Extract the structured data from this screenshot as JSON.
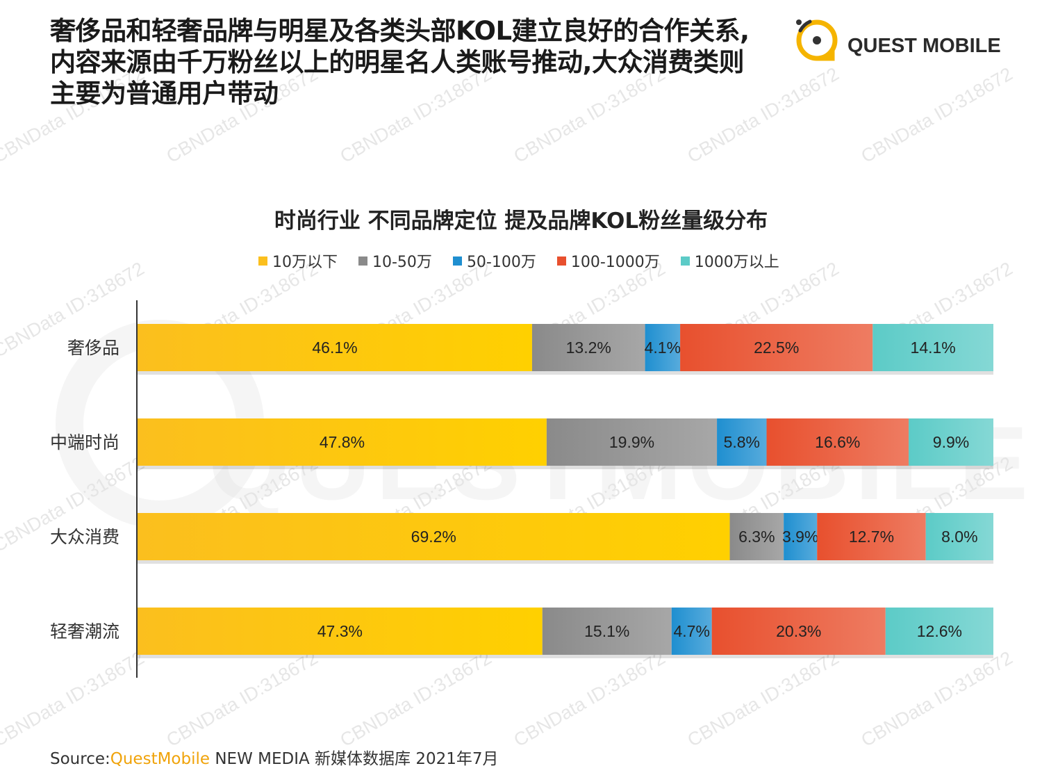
{
  "headline": {
    "line1": "奢侈品和轻奢品牌与明星及各类头部KOL建立良好的合作关系,",
    "line2": "内容来源由千万粉丝以上的明星名人类账号推动,大众消费类则",
    "line3": "主要为普通用户带动"
  },
  "logo": {
    "text": "QUEST MOBILE"
  },
  "watermark": {
    "text": "CBNData ID:318672",
    "big_text": "QUESTMOBILE"
  },
  "colors": {
    "yellow": "#fbbf1e",
    "gray": "#8a8a8a",
    "blue": "#1f8fd0",
    "red": "#e8502e",
    "teal": "#5ccbc7",
    "brand": "#f0a30a"
  },
  "chart_data": {
    "type": "bar",
    "orientation": "horizontal",
    "stacked": true,
    "title": "时尚行业 不同品牌定位 提及品牌KOL粉丝量级分布",
    "categories": [
      "奢侈品",
      "中端时尚",
      "大众消费",
      "轻奢潮流"
    ],
    "series": [
      {
        "name": "10万以下",
        "color": "#fbbf1e",
        "values": [
          46.1,
          47.8,
          69.2,
          47.3
        ],
        "labels": [
          "46.1%",
          "47.8%",
          "69.2%",
          "47.3%"
        ]
      },
      {
        "name": "10-50万",
        "color": "#8a8a8a",
        "values": [
          13.2,
          19.9,
          6.3,
          15.1
        ],
        "labels": [
          "13.2%",
          "19.9%",
          "6.3%",
          "15.1%"
        ]
      },
      {
        "name": "50-100万",
        "color": "#1f8fd0",
        "values": [
          4.1,
          5.8,
          3.9,
          4.7
        ],
        "labels": [
          "4.1%",
          "5.8%",
          "3.9%",
          "4.7%"
        ]
      },
      {
        "name": "100-1000万",
        "color": "#e8502e",
        "values": [
          22.5,
          16.6,
          12.7,
          20.3
        ],
        "labels": [
          "22.5%",
          "16.6%",
          "12.7%",
          "20.3%"
        ]
      },
      {
        "name": "1000万以上",
        "color": "#5ccbc7",
        "values": [
          14.1,
          9.9,
          8.0,
          12.6
        ],
        "labels": [
          "14.1%",
          "9.9%",
          "8.0%",
          "12.6%"
        ]
      }
    ],
    "xlim": [
      0,
      100
    ],
    "legend_position": "top",
    "grid": false
  },
  "source": {
    "label": "Source:",
    "brand": "QuestMobile",
    "text": " NEW MEDIA 新媒体数据库 2021年7月"
  }
}
